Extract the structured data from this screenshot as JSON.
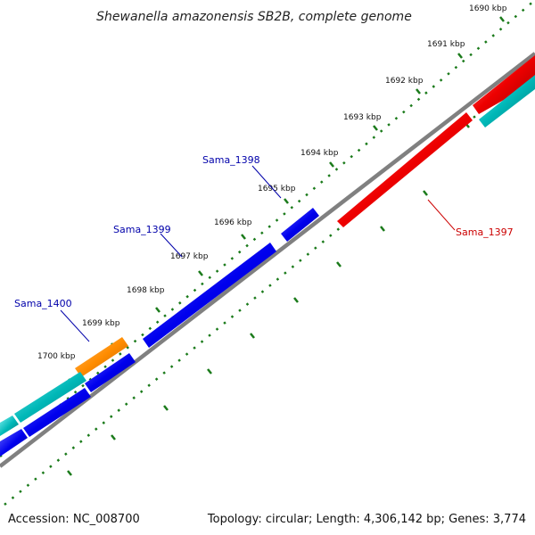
{
  "title": "Shewanella amazonensis SB2B, complete genome",
  "footer": {
    "accession": "Accession: NC_008700",
    "summary": "Topology: circular; Length: 4,306,142 bp; Genes: 3,774"
  },
  "colors": {
    "backbone": "#808080",
    "ticks": "#1a7a1a",
    "forward_gene": "#0000ee",
    "reverse_gene": "#ee0000",
    "teal_gene": "#00b3b3",
    "orange_gene": "#ff8c00",
    "forward_label": "#0000aa",
    "reverse_label": "#cc0000"
  },
  "ticks": [
    {
      "label": "1690 kbp"
    },
    {
      "label": "1691 kbp"
    },
    {
      "label": "1692 kbp"
    },
    {
      "label": "1693 kbp"
    },
    {
      "label": "1694 kbp"
    },
    {
      "label": "1695 kbp"
    },
    {
      "label": "1696 kbp"
    },
    {
      "label": "1697 kbp"
    },
    {
      "label": "1698 kbp"
    },
    {
      "label": "1699 kbp"
    },
    {
      "label": "1700 kbp"
    }
  ],
  "gene_labels": {
    "sama_1397": "Sama_1397",
    "sama_1398": "Sama_1398",
    "sama_1399": "Sama_1399",
    "sama_1400": "Sama_1400"
  }
}
